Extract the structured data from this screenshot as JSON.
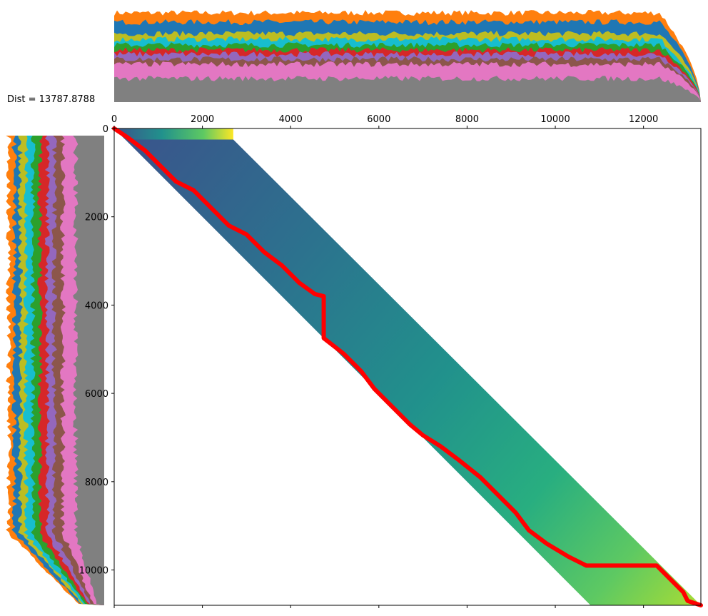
{
  "chart_data": {
    "type": "heatmap",
    "title": "",
    "annotation": "Dist = 13787.8788",
    "xlabel": "",
    "ylabel": "",
    "xlim": [
      0,
      13300
    ],
    "ylim": [
      10800,
      0
    ],
    "xticks": [
      0,
      2000,
      4000,
      6000,
      8000,
      10000,
      12000
    ],
    "yticks": [
      0,
      2000,
      4000,
      6000,
      8000,
      10000
    ],
    "band": {
      "description": "diagonal band of computed cost values",
      "colormap": "viridis",
      "corners": [
        [
          0,
          0
        ],
        [
          2700,
          250
        ],
        [
          13300,
          10800
        ],
        [
          10800,
          10800
        ]
      ]
    },
    "path": {
      "color": "#ff0000",
      "points": [
        [
          0,
          0
        ],
        [
          300,
          200
        ],
        [
          700,
          500
        ],
        [
          1000,
          800
        ],
        [
          1400,
          1200
        ],
        [
          1800,
          1400
        ],
        [
          2200,
          1800
        ],
        [
          2600,
          2200
        ],
        [
          3000,
          2400
        ],
        [
          3400,
          2800
        ],
        [
          3800,
          3100
        ],
        [
          4200,
          3500
        ],
        [
          4550,
          3750
        ],
        [
          4750,
          3800
        ],
        [
          4750,
          4750
        ],
        [
          5200,
          5100
        ],
        [
          5600,
          5500
        ],
        [
          5900,
          5900
        ],
        [
          6300,
          6300
        ],
        [
          6700,
          6700
        ],
        [
          7000,
          6950
        ],
        [
          7400,
          7200
        ],
        [
          7800,
          7500
        ],
        [
          8300,
          7900
        ],
        [
          8700,
          8300
        ],
        [
          9100,
          8700
        ],
        [
          9400,
          9100
        ],
        [
          9800,
          9400
        ],
        [
          10300,
          9700
        ],
        [
          10700,
          9900
        ],
        [
          12300,
          9900
        ],
        [
          12700,
          10300
        ],
        [
          12900,
          10500
        ],
        [
          13000,
          10700
        ],
        [
          13300,
          10800
        ]
      ]
    },
    "top_signal": {
      "description": "stacked multivariate series plotted above the matrix",
      "x_extent": [
        0,
        13300
      ],
      "colors": [
        "#808080",
        "#e377c2",
        "#8c564b",
        "#9467bd",
        "#d62728",
        "#2ca02c",
        "#17becf",
        "#bcbd22",
        "#1f77b4",
        "#ff7f0e"
      ]
    },
    "left_signal": {
      "description": "stacked multivariate series plotted left of the matrix",
      "y_extent": [
        0,
        10800
      ],
      "colors": [
        "#808080",
        "#e377c2",
        "#8c564b",
        "#9467bd",
        "#d62728",
        "#2ca02c",
        "#17becf",
        "#bcbd22",
        "#1f77b4",
        "#ff7f0e"
      ]
    }
  }
}
